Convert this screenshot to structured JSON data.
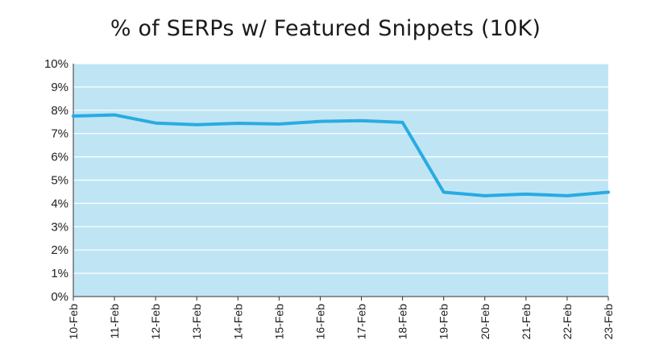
{
  "chart_data": {
    "type": "line",
    "title": "% of SERPs w/ Featured Snippets (10K)",
    "xlabel": "",
    "ylabel": "",
    "categories": [
      "10-Feb",
      "11-Feb",
      "12-Feb",
      "13-Feb",
      "14-Feb",
      "15-Feb",
      "16-Feb",
      "17-Feb",
      "18-Feb",
      "19-Feb",
      "20-Feb",
      "21-Feb",
      "22-Feb",
      "23-Feb"
    ],
    "series": [
      {
        "values": [
          7.75,
          7.8,
          7.45,
          7.38,
          7.44,
          7.41,
          7.52,
          7.55,
          7.48,
          4.48,
          4.33,
          4.4,
          4.33,
          4.48
        ]
      }
    ],
    "ylim": [
      0,
      10
    ],
    "yticks": [
      "0%",
      "1%",
      "2%",
      "3%",
      "4%",
      "5%",
      "6%",
      "7%",
      "8%",
      "9%",
      "10%"
    ],
    "grid": true,
    "legend": "none",
    "colors": {
      "plot_background": "#bfe5f5",
      "gridline": "#ffffff",
      "line": "#29abe2",
      "axis": "#333333"
    }
  }
}
